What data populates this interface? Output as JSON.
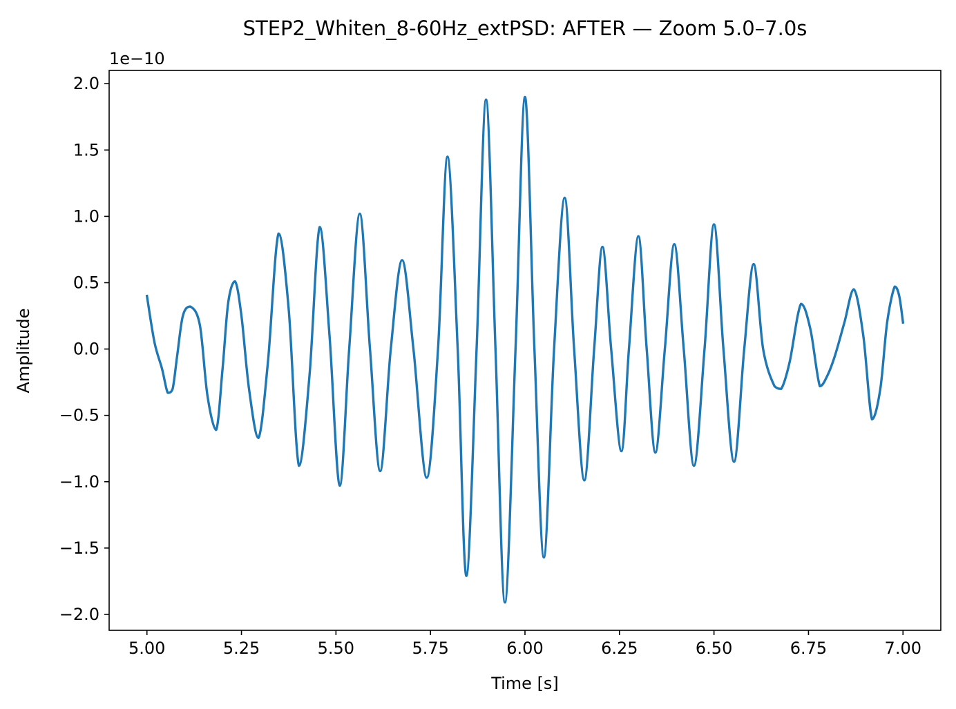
{
  "chart_data": {
    "type": "line",
    "title": "STEP2_Whiten_8-60Hz_extPSD: AFTER — Zoom 5.0–7.0s",
    "xlabel": "Time [s]",
    "ylabel": "Amplitude",
    "y_offset_text": "1e−10",
    "y_scale_factor": 1e-10,
    "xlim": [
      4.9,
      7.1
    ],
    "ylim": [
      -2.12,
      2.1
    ],
    "grid": false,
    "line_color": "#1f77b4",
    "x_ticks": [
      5.0,
      5.25,
      5.5,
      5.75,
      6.0,
      6.25,
      6.5,
      6.75,
      7.0
    ],
    "x_tick_labels": [
      "5.00",
      "5.25",
      "5.50",
      "5.75",
      "6.00",
      "6.25",
      "6.50",
      "6.75",
      "7.00"
    ],
    "y_ticks": [
      2.0,
      1.5,
      1.0,
      0.5,
      0.0,
      -0.5,
      -1.0,
      -1.5,
      -2.0
    ],
    "y_tick_labels": [
      "2.0",
      "1.5",
      "1.0",
      "0.5",
      "0.0",
      "−0.5",
      "−1.0",
      "−1.5",
      "−2.0"
    ],
    "series": [
      {
        "x": [
          5.0,
          5.02,
          5.04,
          5.055,
          5.068,
          5.08,
          5.095,
          5.115,
          5.14,
          5.16,
          5.183,
          5.2,
          5.215,
          5.233,
          5.25,
          5.27,
          5.295,
          5.32,
          5.348,
          5.375,
          5.402,
          5.43,
          5.457,
          5.483,
          5.51,
          5.535,
          5.563,
          5.59,
          5.617,
          5.645,
          5.675,
          5.705,
          5.74,
          5.77,
          5.795,
          5.822,
          5.845,
          5.872,
          5.897,
          5.922,
          5.947,
          5.975,
          6.0,
          6.025,
          6.05,
          6.077,
          6.105,
          6.13,
          6.157,
          6.183,
          6.205,
          6.228,
          6.255,
          6.275,
          6.3,
          6.322,
          6.345,
          6.37,
          6.395,
          6.42,
          6.447,
          6.475,
          6.5,
          6.525,
          6.553,
          6.58,
          6.605,
          6.63,
          6.66,
          6.678,
          6.7,
          6.73,
          6.755,
          6.78,
          6.8,
          6.82,
          6.845,
          6.87,
          6.895,
          6.918,
          6.94,
          6.958,
          6.978,
          6.99,
          7.0
        ],
        "y": [
          0.4,
          0.05,
          -0.15,
          -0.33,
          -0.3,
          -0.05,
          0.25,
          0.32,
          0.18,
          -0.35,
          -0.61,
          -0.15,
          0.35,
          0.51,
          0.25,
          -0.3,
          -0.67,
          -0.1,
          0.87,
          0.3,
          -0.88,
          -0.2,
          0.92,
          0.1,
          -1.03,
          0.0,
          1.02,
          0.0,
          -0.92,
          0.0,
          0.67,
          0.0,
          -0.97,
          0.0,
          1.45,
          0.0,
          -1.71,
          0.0,
          1.88,
          0.0,
          -1.91,
          0.0,
          1.9,
          0.0,
          -1.57,
          0.0,
          1.14,
          0.0,
          -0.99,
          0.0,
          0.77,
          0.0,
          -0.77,
          0.0,
          0.85,
          0.0,
          -0.78,
          0.0,
          0.79,
          0.0,
          -0.88,
          0.0,
          0.94,
          0.0,
          -0.85,
          0.0,
          0.64,
          0.0,
          -0.28,
          -0.3,
          -0.1,
          0.34,
          0.15,
          -0.28,
          -0.2,
          -0.05,
          0.2,
          0.45,
          0.1,
          -0.53,
          -0.3,
          0.2,
          0.47,
          0.4,
          0.2
        ]
      }
    ]
  }
}
